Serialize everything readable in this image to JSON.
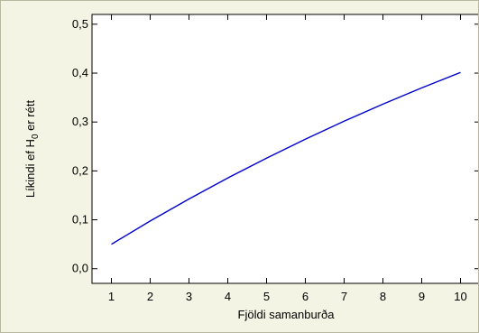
{
  "colors": {
    "background": "#f4f4e4",
    "plot_background": "#ffffff",
    "line": "#0000cc",
    "axis": "#000000"
  },
  "chart_data": {
    "type": "line",
    "title": "",
    "xlabel": "Fjöldi samanburða",
    "ylabel_main": "Líkindi ef H",
    "ylabel_sub": "0",
    "ylabel_tail": " er rétt",
    "xlim": [
      0.5,
      10.5
    ],
    "ylim": [
      -0.03,
      0.52
    ],
    "x_ticks": [
      1,
      2,
      3,
      4,
      5,
      6,
      7,
      8,
      9,
      10
    ],
    "x_tick_labels": [
      "1",
      "2",
      "3",
      "4",
      "5",
      "6",
      "7",
      "8",
      "9",
      "10"
    ],
    "y_ticks": [
      0.0,
      0.1,
      0.2,
      0.3,
      0.4,
      0.5
    ],
    "y_tick_labels": [
      "0,0",
      "0,1",
      "0,2",
      "0,3",
      "0,4",
      "0,5"
    ],
    "grid": false,
    "legend": "none",
    "series": [
      {
        "x": [
          1,
          2,
          3,
          4,
          5,
          6,
          7,
          8,
          9,
          10
        ],
        "y": [
          0.05,
          0.0975,
          0.1426,
          0.1855,
          0.2262,
          0.2649,
          0.3017,
          0.3366,
          0.3698,
          0.4013
        ]
      }
    ]
  }
}
